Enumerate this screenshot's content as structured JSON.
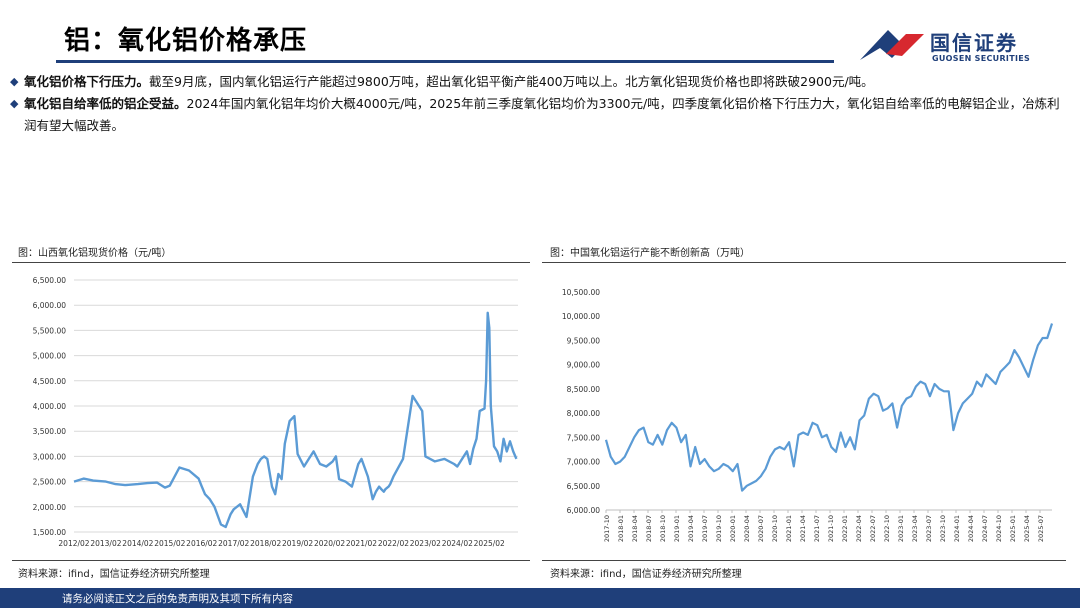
{
  "header": {
    "title": "铝：氧化铝价格承压",
    "logo_cn": "国信证券",
    "logo_en": "GUOSEN SECURITIES"
  },
  "bullets": [
    {
      "bold": "氧化铝价格下行压力。",
      "text": "截至9月底，国内氧化铝运行产能超过9800万吨，超出氧化铝平衡产能400万吨以上。北方氧化铝现货价格也即将跌破2900元/吨。"
    },
    {
      "bold": "氧化铝自给率低的铝企受益。",
      "text": "2024年国内氧化铝年均价大概4000元/吨，2025年前三季度氧化铝均价为3300元/吨，四季度氧化铝价格下行压力大，氧化铝自给率低的电解铝企业，冶炼利润有望大幅改善。"
    }
  ],
  "charts": {
    "left_title": "图：山西氧化铝现货价格（元/吨）",
    "right_title": "图：中国氧化铝运行产能不断创新高（万吨）",
    "left_source": "资料来源：ifind，国信证券经济研究所整理",
    "right_source": "资料来源：ifind，国信证券经济研究所整理"
  },
  "footer": {
    "text": "请务必阅读正文之后的免责声明及其项下所有内容"
  },
  "colors": {
    "brand": "#1f3f7a",
    "logo_red": "#d7282f",
    "series": "#5b9bd5"
  },
  "chart_data": [
    {
      "type": "line",
      "title": "图：山西氧化铝现货价格（元/吨）",
      "ylim": [
        1500,
        6500
      ],
      "yticks": [
        "1,500.00",
        "2,000.00",
        "2,500.00",
        "3,000.00",
        "3,500.00",
        "4,000.00",
        "4,500.00",
        "5,000.00",
        "5,500.00",
        "6,000.00",
        "6,500.00"
      ],
      "xticks": [
        "2012/02",
        "2013/02",
        "2014/02",
        "2015/02",
        "2016/02",
        "2017/02",
        "2018/02",
        "2019/02",
        "2020/02",
        "2021/02",
        "2022/02",
        "2023/02",
        "2024/02",
        "2025/02"
      ],
      "xlim": [
        2012.0,
        2025.9
      ],
      "grid": true,
      "x": [
        2012.0,
        2012.3,
        2012.6,
        2013.0,
        2013.3,
        2013.6,
        2014.0,
        2014.3,
        2014.6,
        2014.85,
        2015.0,
        2015.3,
        2015.6,
        2015.9,
        2016.0,
        2016.1,
        2016.25,
        2016.4,
        2016.6,
        2016.75,
        2016.9,
        2017.0,
        2017.2,
        2017.4,
        2017.6,
        2017.75,
        2017.85,
        2017.95,
        2018.05,
        2018.2,
        2018.3,
        2018.4,
        2018.5,
        2018.6,
        2018.75,
        2018.9,
        2019.0,
        2019.2,
        2019.35,
        2019.5,
        2019.7,
        2019.9,
        2020.0,
        2020.1,
        2020.2,
        2020.3,
        2020.5,
        2020.7,
        2020.9,
        2021.0,
        2021.2,
        2021.35,
        2021.45,
        2021.55,
        2021.62,
        2021.7,
        2021.75,
        2021.85,
        2021.9,
        2022.0,
        2022.3,
        2022.6,
        2022.9,
        2023.0,
        2023.3,
        2023.6,
        2023.9,
        2024.0,
        2024.2,
        2024.3,
        2024.4,
        2024.5,
        2024.6,
        2024.7,
        2024.85,
        2024.9,
        2024.95,
        2025.0,
        2025.05,
        2025.15,
        2025.25,
        2025.35,
        2025.45,
        2025.55,
        2025.65,
        2025.75,
        2025.85
      ],
      "values": [
        2500,
        2560,
        2520,
        2500,
        2450,
        2430,
        2450,
        2470,
        2480,
        2380,
        2420,
        2780,
        2720,
        2560,
        2400,
        2250,
        2150,
        2000,
        1650,
        1600,
        1850,
        1950,
        2050,
        1800,
        2600,
        2850,
        2950,
        3000,
        2950,
        2400,
        2250,
        2650,
        2550,
        3250,
        3700,
        3800,
        3050,
        2800,
        2950,
        3100,
        2850,
        2800,
        2850,
        2900,
        3000,
        2550,
        2500,
        2400,
        2850,
        2950,
        2600,
        2150,
        2300,
        2400,
        2350,
        2300,
        2350,
        2400,
        2450,
        2600,
        2950,
        4200,
        3900,
        3000,
        2900,
        2950,
        2850,
        2800,
        3000,
        3100,
        2850,
        3150,
        3350,
        3900,
        3950,
        4500,
        5850,
        5550,
        4000,
        3200,
        3100,
        2900,
        3350,
        3100,
        3300,
        3100,
        2950
      ]
    },
    {
      "type": "line",
      "title": "图：中国氧化铝运行产能不断创新高（万吨）",
      "ylim": [
        6000,
        10500
      ],
      "yticks": [
        "6,000.00",
        "6,500.00",
        "7,000.00",
        "7,500.00",
        "8,000.00",
        "8,500.00",
        "9,000.00",
        "9,500.00",
        "10,000.00",
        "10,500.00"
      ],
      "xticks": [
        "2017-10",
        "2018-01",
        "2018-04",
        "2018-07",
        "2018-10",
        "2019-01",
        "2019-04",
        "2019-07",
        "2019-10",
        "2020-01",
        "2020-04",
        "2020-07",
        "2020-10",
        "2021-01",
        "2021-04",
        "2021-07",
        "2021-10",
        "2022-01",
        "2022-04",
        "2022-07",
        "2022-10",
        "2023-01",
        "2023-04",
        "2023-07",
        "2023-10",
        "2024-01",
        "2024-04",
        "2024-07",
        "2024-10",
        "2025-01",
        "2025-04",
        "2025-07"
      ],
      "grid": false,
      "values": [
        7450,
        7100,
        6950,
        7000,
        7100,
        7300,
        7500,
        7650,
        7700,
        7400,
        7350,
        7550,
        7350,
        7650,
        7800,
        7700,
        7400,
        7550,
        6900,
        7300,
        6950,
        7050,
        6900,
        6800,
        6850,
        6950,
        6900,
        6800,
        6950,
        6400,
        6500,
        6550,
        6600,
        6700,
        6850,
        7100,
        7250,
        7300,
        7250,
        7400,
        6900,
        7550,
        7600,
        7550,
        7800,
        7750,
        7500,
        7550,
        7300,
        7200,
        7600,
        7300,
        7500,
        7250,
        7850,
        7950,
        8300,
        8400,
        8350,
        8050,
        8100,
        8200,
        7700,
        8150,
        8300,
        8350,
        8550,
        8650,
        8600,
        8350,
        8600,
        8500,
        8450,
        8450,
        7650,
        8000,
        8200,
        8300,
        8400,
        8650,
        8550,
        8800,
        8700,
        8600,
        8850,
        8950,
        9050,
        9300,
        9150,
        8950,
        8750,
        9100,
        9400,
        9550,
        9550,
        9850
      ]
    }
  ]
}
